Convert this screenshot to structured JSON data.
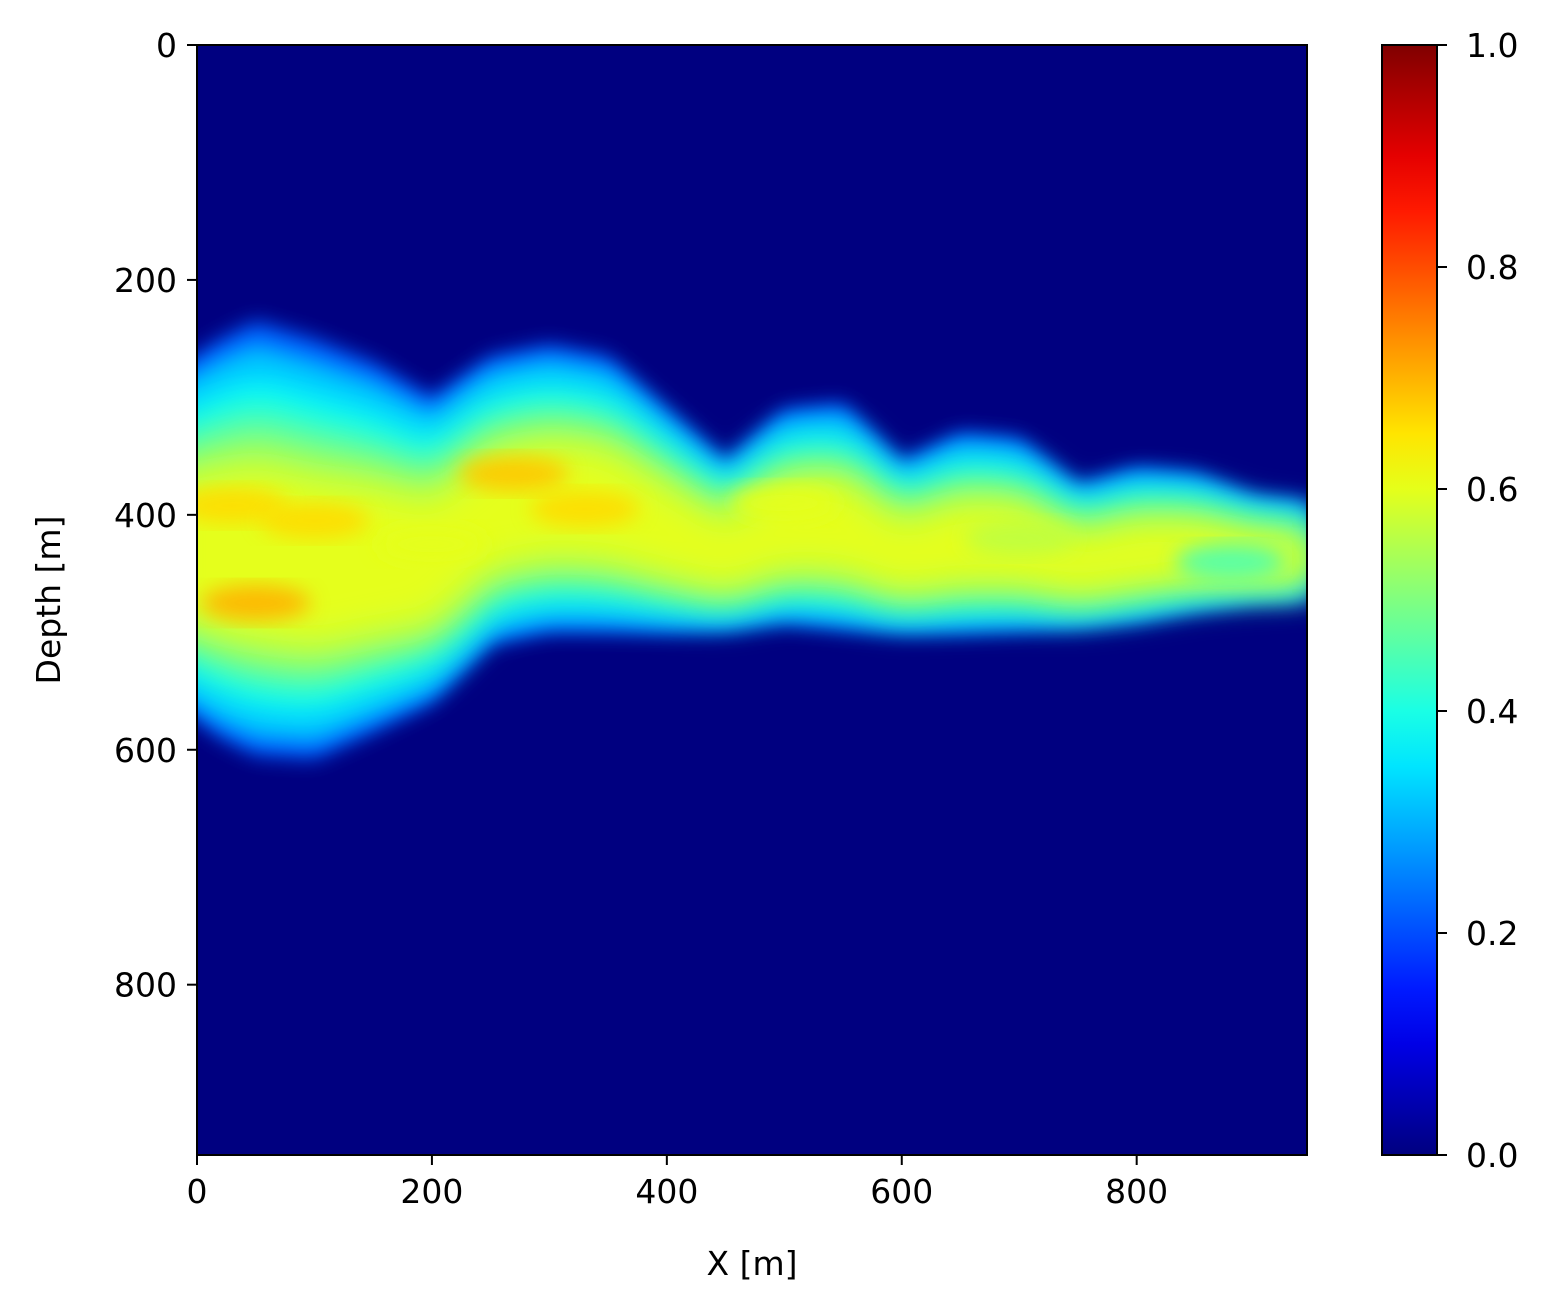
{
  "chart_data": {
    "type": "heatmap",
    "title": "",
    "xlabel": "X [m]",
    "ylabel": "Depth [m]",
    "xlim": [
      0,
      945
    ],
    "ylim": [
      945,
      0
    ],
    "x_ticks": [
      0,
      200,
      400,
      600,
      800
    ],
    "y_ticks": [
      0,
      200,
      400,
      600,
      800
    ],
    "x_tick_labels": [
      "0",
      "200",
      "400",
      "600",
      "800"
    ],
    "y_tick_labels": [
      "0",
      "200",
      "400",
      "600",
      "800"
    ],
    "colormap": "jet",
    "colorbar": {
      "range": [
        0.0,
        1.0
      ],
      "ticks": [
        0.0,
        0.2,
        0.4,
        0.6,
        0.8,
        1.0
      ],
      "tick_labels": [
        "0.0",
        "0.2",
        "0.4",
        "0.6",
        "0.8",
        "1.0"
      ]
    },
    "background_value": 0.0,
    "plume_profile": {
      "x": [
        0,
        20,
        50,
        100,
        150,
        200,
        250,
        300,
        350,
        400,
        450,
        500,
        550,
        600,
        650,
        700,
        750,
        800,
        850,
        900,
        945
      ],
      "top_depth": [
        280,
        250,
        235,
        250,
        270,
        300,
        265,
        255,
        265,
        310,
        355,
        310,
        305,
        355,
        330,
        335,
        375,
        360,
        365,
        385,
        390
      ],
      "bottom_depth": [
        555,
        590,
        605,
        608,
        585,
        560,
        510,
        500,
        500,
        500,
        498,
        492,
        497,
        500,
        500,
        498,
        495,
        490,
        480,
        472,
        470
      ]
    },
    "features": [
      {
        "x": 50,
        "depth": 475,
        "value": 0.7
      },
      {
        "x": 30,
        "depth": 392,
        "value": 0.66
      },
      {
        "x": 100,
        "depth": 405,
        "value": 0.66
      },
      {
        "x": 270,
        "depth": 365,
        "value": 0.68
      },
      {
        "x": 330,
        "depth": 395,
        "value": 0.66
      },
      {
        "x": 500,
        "depth": 390,
        "value": 0.6
      },
      {
        "x": 200,
        "depth": 425,
        "value": 0.6
      },
      {
        "x": 700,
        "depth": 420,
        "value": 0.56
      },
      {
        "x": 880,
        "depth": 440,
        "value": 0.45
      }
    ],
    "grid": false
  }
}
